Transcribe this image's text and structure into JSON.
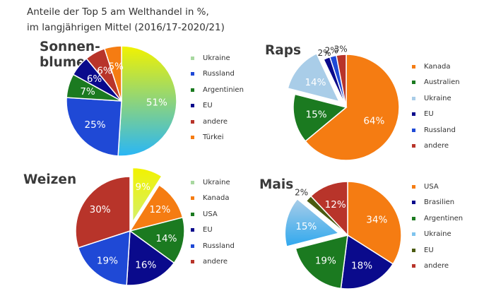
{
  "title": {
    "line1": "Anteile der Top 5 am Welthandel in %,",
    "line2": "im langjährigen Mittel (2016/17-2020/21)"
  },
  "chart_data": [
    {
      "type": "pie",
      "title_line1": "Sonnen-",
      "title_line2": "blumenöl",
      "legend": [
        "Ukraine",
        "Russland",
        "Argentinien",
        "EU",
        "andere",
        "Türkei"
      ],
      "slices": [
        {
          "label": "Ukraine",
          "value": 51,
          "display": "51%",
          "color": "#f2f200",
          "color2": "#29b6f6",
          "gradient": true
        },
        {
          "label": "Russland",
          "value": 25,
          "display": "25%",
          "color": "#1f49d6"
        },
        {
          "label": "Argentinien",
          "value": 7,
          "display": "7%",
          "color": "#1b7a20"
        },
        {
          "label": "EU",
          "value": 6,
          "display": "6%",
          "color": "#0a0a8c"
        },
        {
          "label": "andere",
          "value": 6,
          "display": "6%",
          "color": "#b8342a"
        },
        {
          "label": "Türkei",
          "value": 5,
          "display": "5%",
          "color": "#f57c12"
        }
      ]
    },
    {
      "type": "pie",
      "title_line1": "Raps",
      "title_line2": "",
      "legend": [
        "Kanada",
        "Australien",
        "Ukraine",
        "EU",
        "Russland",
        "andere"
      ],
      "slices": [
        {
          "label": "Kanada",
          "value": 64,
          "display": "64%",
          "color": "#f57c12"
        },
        {
          "label": "Australien",
          "value": 15,
          "display": "15%",
          "color": "#1b7a20"
        },
        {
          "label": "Ukraine",
          "value": 14,
          "display": "14%",
          "color": "#a9cde8",
          "explode": true
        },
        {
          "label": "EU",
          "value": 2,
          "display": "2%",
          "color": "#0a0a8c"
        },
        {
          "label": "Russland",
          "value": 2,
          "display": "2%",
          "color": "#1f49d6"
        },
        {
          "label": "andere",
          "value": 3,
          "display": "3%",
          "color": "#b8342a"
        }
      ]
    },
    {
      "type": "pie",
      "title_line1": "Weizen",
      "title_line2": "",
      "legend": [
        "Ukraine",
        "Kanada",
        "USA",
        "EU",
        "Russland",
        "andere"
      ],
      "slices": [
        {
          "label": "Ukraine",
          "value": 9,
          "display": "9%",
          "color": "#f2f200",
          "color2": "#d4f06a",
          "gradient": true,
          "explode": true
        },
        {
          "label": "Kanada",
          "value": 12,
          "display": "12%",
          "color": "#f57c12"
        },
        {
          "label": "USA",
          "value": 14,
          "display": "14%",
          "color": "#1b7a20"
        },
        {
          "label": "EU",
          "value": 16,
          "display": "16%",
          "color": "#0a0a8c"
        },
        {
          "label": "Russland",
          "value": 19,
          "display": "19%",
          "color": "#1f49d6"
        },
        {
          "label": "andere",
          "value": 30,
          "display": "30%",
          "color": "#b8342a"
        }
      ]
    },
    {
      "type": "pie",
      "title_line1": "Mais",
      "title_line2": "",
      "legend": [
        "USA",
        "Brasilien",
        "Argentinen",
        "Ukraine",
        "EU",
        "andere"
      ],
      "slices": [
        {
          "label": "USA",
          "value": 34,
          "display": "34%",
          "color": "#f57c12"
        },
        {
          "label": "Brasilien",
          "value": 18,
          "display": "18%",
          "color": "#0a0a8c"
        },
        {
          "label": "Argentinen",
          "value": 19,
          "display": "19%",
          "color": "#1b7a20"
        },
        {
          "label": "Ukraine",
          "value": 15,
          "display": "15%",
          "color": "#a9cde8",
          "color2": "#2fa8ee",
          "gradient": true,
          "explode": true
        },
        {
          "label": "EU",
          "value": 2,
          "display": "2%",
          "color": "#4a5a10"
        },
        {
          "label": "andere",
          "value": 12,
          "display": "12%",
          "color": "#b8342a"
        }
      ]
    }
  ]
}
